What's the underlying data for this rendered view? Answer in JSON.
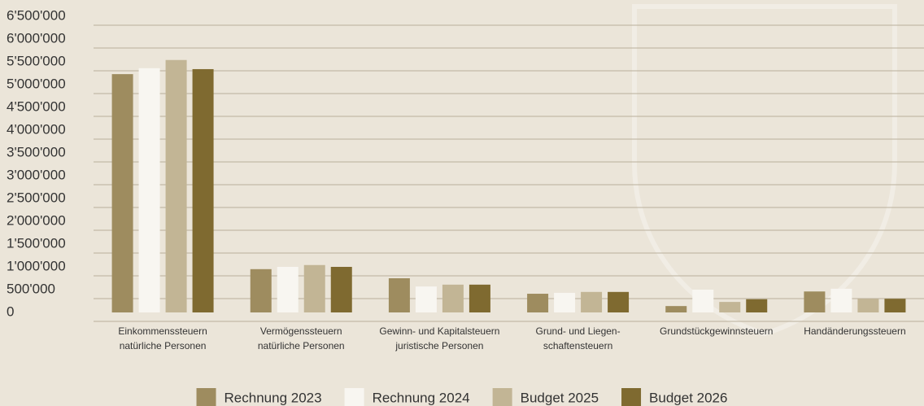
{
  "chart_data": {
    "type": "bar",
    "categories": [
      [
        "Einkommenssteuern",
        "natürliche Personen"
      ],
      [
        "Vermögenssteuern",
        "natürliche Personen"
      ],
      [
        "Gewinn- und Kapitalsteuern",
        "juristische Personen"
      ],
      [
        "Grund- und Liegen-",
        "schaftensteuern"
      ],
      [
        "Grundstückgewinnsteuern"
      ],
      [
        "Handänderungssteuern"
      ]
    ],
    "series": [
      {
        "name": "Rechnung 2023",
        "color": "#9e8c5f",
        "values": [
          5230000,
          950000,
          750000,
          410000,
          140000,
          460000
        ]
      },
      {
        "name": "Rechnung 2024",
        "color": "#f8f6f1",
        "values": [
          5360000,
          1000000,
          570000,
          430000,
          500000,
          520000
        ]
      },
      {
        "name": "Budget 2025",
        "color": "#c2b595",
        "values": [
          5540000,
          1040000,
          610000,
          450000,
          230000,
          300000
        ]
      },
      {
        "name": "Budget 2026",
        "color": "#7f6a30",
        "values": [
          5340000,
          1000000,
          610000,
          450000,
          290000,
          300000
        ]
      }
    ],
    "ylim": [
      0,
      6500000
    ],
    "yticks": [
      0,
      {
        "value": 500000,
        "label": "500'000"
      },
      {
        "value": 1000000,
        "label": "1'000'000"
      },
      {
        "value": 1500000,
        "label": "1'500'000"
      },
      {
        "value": 2000000,
        "label": "2'000'000"
      },
      {
        "value": 2500000,
        "label": "2'500'000"
      },
      {
        "value": 3000000,
        "label": "3'000'000"
      },
      {
        "value": 3500000,
        "label": "3'500'000"
      },
      {
        "value": 4000000,
        "label": "4'000'000"
      },
      {
        "value": 4500000,
        "label": "4'500'000"
      },
      {
        "value": 5000000,
        "label": "5'000'000"
      },
      {
        "value": 5500000,
        "label": "5'500'000"
      },
      {
        "value": 6000000,
        "label": "6'000'000"
      },
      {
        "value": 6500000,
        "label": "6'500'000"
      }
    ],
    "grid": true
  }
}
